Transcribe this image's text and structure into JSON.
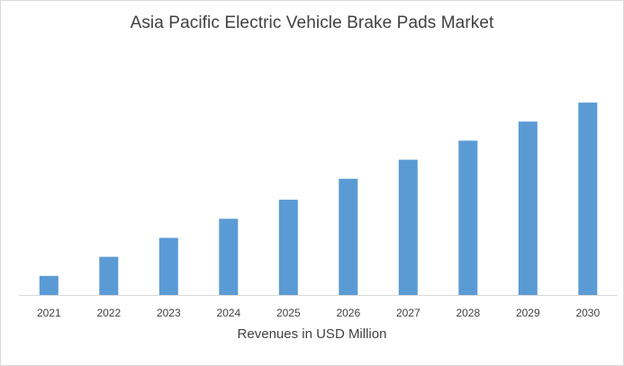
{
  "chart_data": {
    "type": "bar",
    "title": "Asia Pacific Electric Vehicle Brake Pads Market",
    "xlabel": "Revenues in USD Million",
    "ylabel": "",
    "categories": [
      "2021",
      "2022",
      "2023",
      "2024",
      "2025",
      "2026",
      "2027",
      "2028",
      "2029",
      "2030"
    ],
    "values": [
      10,
      20,
      30,
      40,
      50,
      61,
      71,
      81,
      91,
      101
    ],
    "ylim": [
      0,
      110
    ],
    "y_axis_visible": false,
    "grid": false,
    "legend": "none",
    "bar_color": "#5b9bd5",
    "axis_color": "#d9d9d9"
  }
}
